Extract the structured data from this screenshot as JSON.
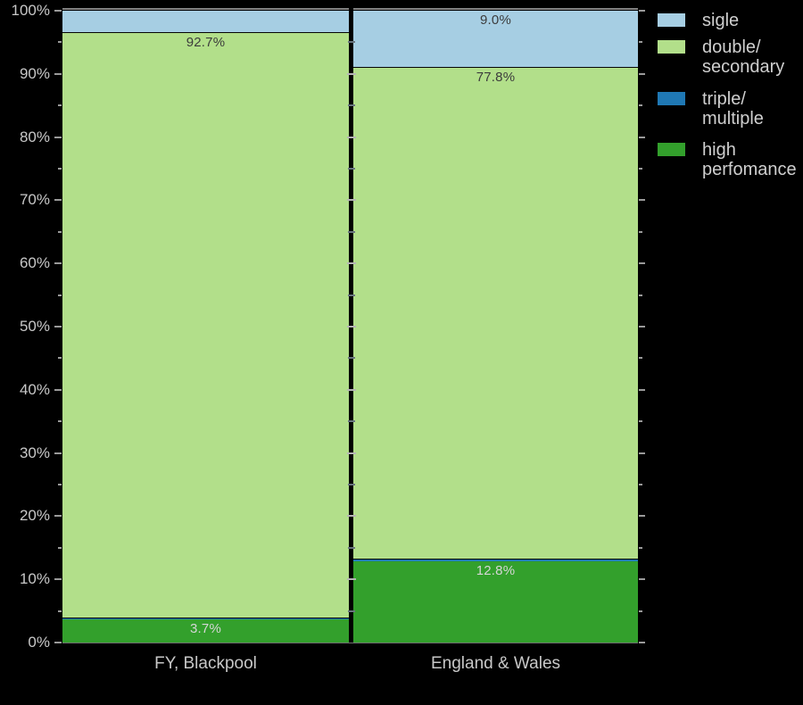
{
  "background": "#000000",
  "chart_data": {
    "type": "bar",
    "variant": "stacked-percentage-columns",
    "title": "",
    "xlabel": "",
    "ylabel": "",
    "categories": [
      "FY, Blackpool",
      "England & Wales"
    ],
    "series": [
      {
        "name": "sigle",
        "color": "#a6cee3",
        "values": [
          3.5,
          9.0
        ],
        "data_labels": [
          "",
          "9.0%"
        ],
        "label_style": "dark"
      },
      {
        "name": "double/secondary",
        "color": "#b2df8a",
        "values": [
          92.7,
          77.8
        ],
        "data_labels": [
          "92.7%",
          "77.8%"
        ],
        "label_style": "dark"
      },
      {
        "name": "triple/multiple",
        "color": "#1f78b4",
        "values": [
          0.1,
          0.4
        ],
        "data_labels": [
          "",
          ""
        ],
        "label_style": "dark"
      },
      {
        "name": "high perfomance",
        "color": "#33a02c",
        "values": [
          3.7,
          12.8
        ],
        "data_labels": [
          "3.7%",
          "12.8%"
        ],
        "label_style": "light"
      }
    ],
    "ylim": [
      0,
      100
    ],
    "ytick_labels": [
      "0%",
      "10%",
      "20%",
      "30%",
      "40%",
      "50%",
      "60%",
      "70%",
      "80%",
      "90%",
      "100%"
    ],
    "ytick_minor_step_percent": 5,
    "grid": false,
    "legend": {
      "position": "outside-upper-right",
      "entries": [
        {
          "label_lines": [
            "sigle"
          ],
          "color": "#a6cee3"
        },
        {
          "label_lines": [
            "double/",
            "secondary"
          ],
          "color": "#b2df8a"
        },
        {
          "label_lines": [
            "triple/",
            "multiple"
          ],
          "color": "#1f78b4"
        },
        {
          "label_lines": [
            "high",
            "perfomance"
          ],
          "color": "#33a02c"
        }
      ]
    }
  },
  "style_colors": {
    "axis_text": "#c8c8c8",
    "legend_text": "#cfcfcf",
    "tick": "#9a9a9a",
    "bar_label_dark": "#3c3c3c",
    "bar_label_light": "#d6d6d6"
  }
}
